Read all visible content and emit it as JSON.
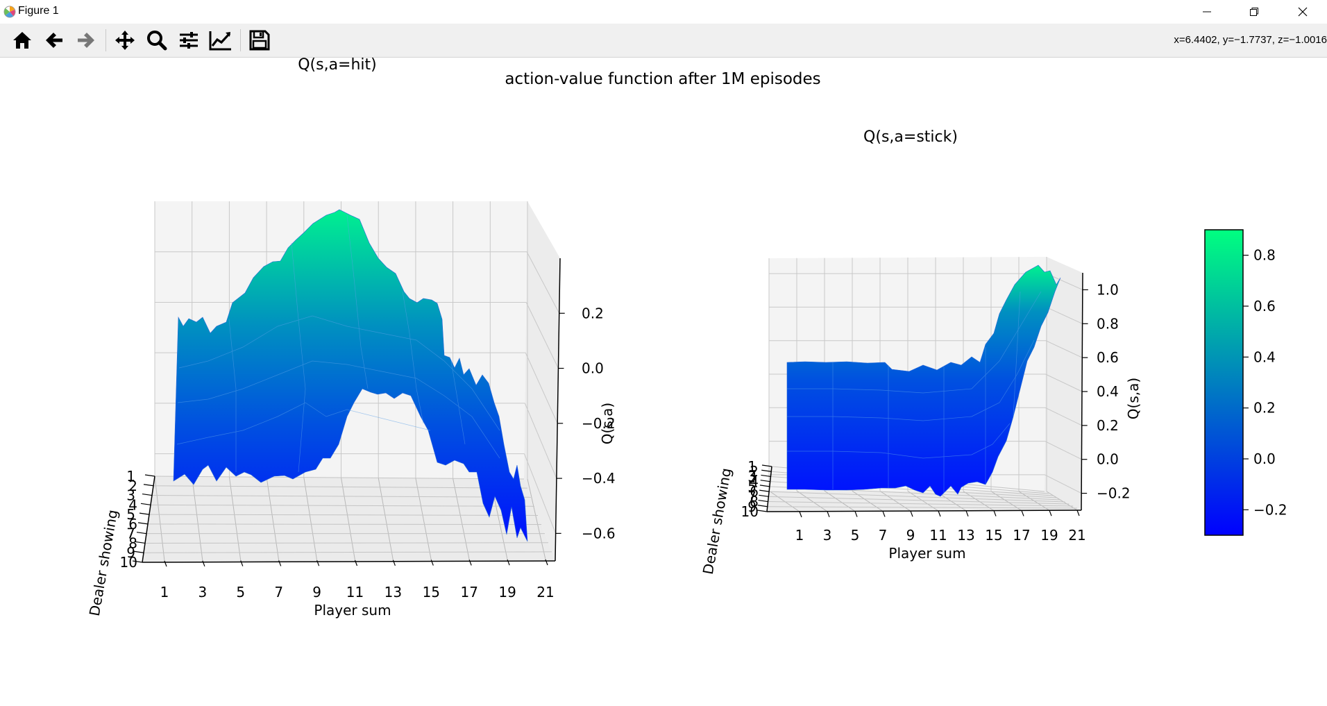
{
  "window": {
    "title": "Figure 1",
    "controls": {
      "minimize": "minimize-icon",
      "maximize": "restore-icon",
      "close": "close-icon"
    }
  },
  "toolbar": {
    "buttons": [
      {
        "name": "home",
        "icon": "home-icon"
      },
      {
        "name": "back",
        "icon": "arrow-left-icon"
      },
      {
        "name": "forward",
        "icon": "arrow-right-icon"
      },
      {
        "name": "pan",
        "icon": "move-icon"
      },
      {
        "name": "zoom",
        "icon": "magnifier-icon"
      },
      {
        "name": "configure-subplots",
        "icon": "sliders-icon"
      },
      {
        "name": "edit-axis",
        "icon": "line-chart-icon"
      },
      {
        "name": "save",
        "icon": "floppy-disk-icon"
      }
    ],
    "coordinates": "x=6.4402, y=−1.7737, z=−1.0016"
  },
  "figure": {
    "suptitle": "action-value function after 1M episodes",
    "colormap": {
      "name": "winter",
      "low": "#0000ff",
      "high": "#00ff80"
    }
  },
  "chart_data": [
    {
      "type": "surface",
      "title": "Q(s,a=hit)",
      "xlabel": "Player sum",
      "ylabel": "Dealer showing",
      "zlabel": "Q(s,a)",
      "x_ticks": [
        "1",
        "3",
        "5",
        "7",
        "9",
        "11",
        "13",
        "15",
        "17",
        "19",
        "21"
      ],
      "y_ticks": [
        "1",
        "2",
        "3",
        "4",
        "5",
        "6",
        "7",
        "8",
        "9",
        "10"
      ],
      "z_ticks": [
        "−0.6",
        "−0.4",
        "−0.2",
        "0.0",
        "0.2"
      ],
      "zlim": [
        -0.7,
        0.4
      ],
      "front_profile": [
        {
          "x": 1,
          "z": -0.43
        },
        {
          "x": 2,
          "z": -0.43
        },
        {
          "x": 3,
          "z": -0.5
        },
        {
          "x": 4,
          "z": -0.44
        },
        {
          "x": 5,
          "z": -0.46
        },
        {
          "x": 6,
          "z": -0.34
        },
        {
          "x": 7,
          "z": -0.32
        },
        {
          "x": 8,
          "z": -0.2
        },
        {
          "x": 9,
          "z": -0.12
        },
        {
          "x": 10,
          "z": -0.1
        },
        {
          "x": 11,
          "z": -0.12
        },
        {
          "x": 12,
          "z": -0.16
        },
        {
          "x": 13,
          "z": -0.2
        },
        {
          "x": 14,
          "z": -0.3
        },
        {
          "x": 15,
          "z": -0.35
        },
        {
          "x": 16,
          "z": -0.38
        },
        {
          "x": 17,
          "z": -0.42
        },
        {
          "x": 18,
          "z": -0.55
        },
        {
          "x": 19,
          "z": -0.6
        },
        {
          "x": 20,
          "z": -0.62
        },
        {
          "x": 21,
          "z": -0.62
        }
      ],
      "peak": {
        "x": 10,
        "y": 10,
        "z": 0.35
      }
    },
    {
      "type": "surface",
      "title": "Q(s,a=stick)",
      "xlabel": "Player sum",
      "ylabel": "Dealer showing",
      "zlabel": "Q(s,a)",
      "x_ticks": [
        "1",
        "3",
        "5",
        "7",
        "9",
        "11",
        "13",
        "15",
        "17",
        "19",
        "21"
      ],
      "y_ticks": [
        "1",
        "2",
        "3",
        "4",
        "5",
        "6",
        "7",
        "8",
        "9",
        "10"
      ],
      "z_ticks": [
        "−0.2",
        "0.0",
        "0.2",
        "0.4",
        "0.6",
        "0.8",
        "1.0"
      ],
      "zlim": [
        -0.3,
        1.1
      ],
      "front_profile": [
        {
          "x": 1,
          "z": -0.2
        },
        {
          "x": 5,
          "z": -0.2
        },
        {
          "x": 9,
          "z": -0.22
        },
        {
          "x": 11,
          "z": -0.25
        },
        {
          "x": 13,
          "z": -0.22
        },
        {
          "x": 15,
          "z": -0.2
        },
        {
          "x": 17,
          "z": 0.2
        },
        {
          "x": 19,
          "z": 0.6
        },
        {
          "x": 21,
          "z": 0.8
        }
      ],
      "plateau_z": 0.3,
      "peak": {
        "x": 21,
        "y": 10,
        "z": 0.95
      }
    }
  ],
  "colorbar": {
    "ticks": [
      "−0.2",
      "0.0",
      "0.2",
      "0.4",
      "0.6",
      "0.8"
    ],
    "range": [
      -0.3,
      0.9
    ]
  }
}
